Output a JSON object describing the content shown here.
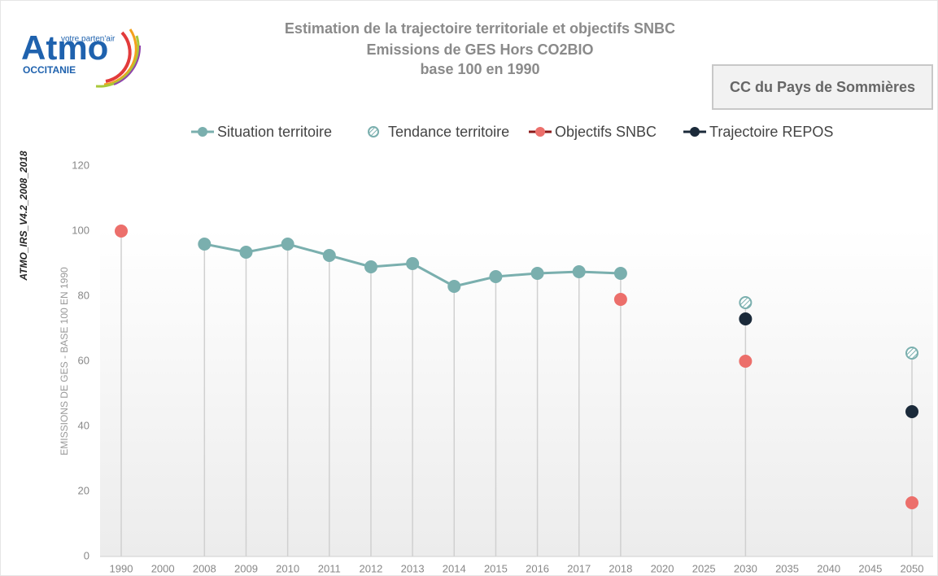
{
  "logo": {
    "tagline": "votre parten'air",
    "name": "Atmo",
    "region": "OCCITANIE"
  },
  "territory": "CC du Pays de Sommières",
  "version_note": "ATMO_IRS_V4.2_2008_2018",
  "chart_data": {
    "type": "line",
    "title": [
      "Estimation de la trajectoire territoriale  et objectifs SNBC",
      "Emissions de GES Hors CO2BIO",
      "base 100 en 1990"
    ],
    "y_label": "EMISSIONS  DE GES - BASE 100 EN 1990",
    "categories": [
      "1990",
      "2000",
      "2008",
      "2009",
      "2010",
      "2011",
      "2012",
      "2013",
      "2014",
      "2015",
      "2016",
      "2017",
      "2018",
      "2020",
      "2025",
      "2030",
      "2035",
      "2040",
      "2045",
      "2050"
    ],
    "series": [
      {
        "name": "Situation territoire",
        "color": "#7aafae",
        "connect": true,
        "hatched": false,
        "values": [
          null,
          null,
          96,
          93.5,
          96,
          92.5,
          89,
          90,
          83,
          86,
          87,
          87.5,
          87,
          null,
          null,
          null,
          null,
          null,
          null,
          null
        ]
      },
      {
        "name": "Tendance territoire",
        "color": "#7aafae",
        "connect": false,
        "hatched": true,
        "values": [
          null,
          null,
          null,
          null,
          null,
          null,
          null,
          null,
          null,
          null,
          null,
          null,
          null,
          null,
          null,
          78,
          null,
          null,
          null,
          62.5
        ]
      },
      {
        "name": "Objectifs SNBC",
        "color": "#ec6f6b",
        "connect": false,
        "hatched": false,
        "values": [
          100,
          null,
          null,
          null,
          null,
          null,
          null,
          null,
          null,
          null,
          null,
          null,
          79,
          null,
          null,
          60,
          null,
          null,
          null,
          16.5
        ]
      },
      {
        "name": "Trajectoire REPOS",
        "color": "#1b2a3a",
        "connect": false,
        "hatched": false,
        "values": [
          null,
          null,
          null,
          null,
          null,
          null,
          null,
          null,
          null,
          null,
          null,
          null,
          null,
          null,
          null,
          73,
          null,
          null,
          null,
          44.5
        ]
      }
    ],
    "ylim": [
      0,
      120
    ],
    "yticks": [
      0,
      20,
      40,
      60,
      80,
      100,
      120
    ],
    "grid": false
  }
}
